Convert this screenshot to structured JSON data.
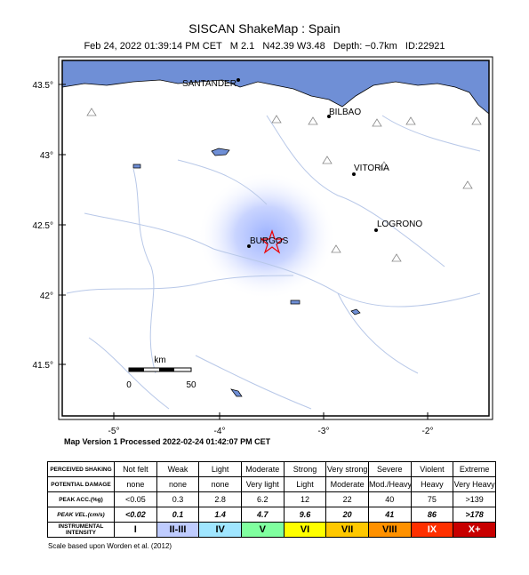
{
  "title": "SISCAN ShakeMap : Spain",
  "subtitle": "Feb 24, 2022 01:39:14 PM CET   M 2.1   N42.39 W3.48   Depth: −0.7km   ID:22921",
  "map": {
    "lat_labels": [
      "43.5°",
      "43°",
      "42.5°",
      "42°",
      "41.5°"
    ],
    "lon_labels": [
      "-5°",
      "-4°",
      "-3°",
      "-2°"
    ],
    "cities": [
      "SANTANDER",
      "BILBAO",
      "VITORIA",
      "LOGRONO",
      "BURGOS"
    ],
    "scale": {
      "unit": "km",
      "min": "0",
      "max": "50"
    }
  },
  "version": "Map Version 1 Processed 2022-02-24 01:42:07 PM CET",
  "table": {
    "rows": [
      [
        "PERCEIVED SHAKING",
        "Not felt",
        "Weak",
        "Light",
        "Moderate",
        "Strong",
        "Very strong",
        "Severe",
        "Violent",
        "Extreme"
      ],
      [
        "POTENTIAL DAMAGE",
        "none",
        "none",
        "none",
        "Very light",
        "Light",
        "Moderate",
        "Mod./Heavy",
        "Heavy",
        "Very Heavy"
      ],
      [
        "PEAK ACC.(%g)",
        "<0.05",
        "0.3",
        "2.8",
        "6.2",
        "12",
        "22",
        "40",
        "75",
        ">139"
      ],
      [
        "PEAK VEL.(cm/s)",
        "<0.02",
        "0.1",
        "1.4",
        "4.7",
        "9.6",
        "20",
        "41",
        "86",
        ">178"
      ],
      [
        "INSTRUMENTAL INTENSITY",
        "I",
        "II-III",
        "IV",
        "V",
        "VI",
        "VII",
        "VIII",
        "IX",
        "X+"
      ]
    ]
  },
  "footnote": "Scale based upon Worden et al. (2012)"
}
